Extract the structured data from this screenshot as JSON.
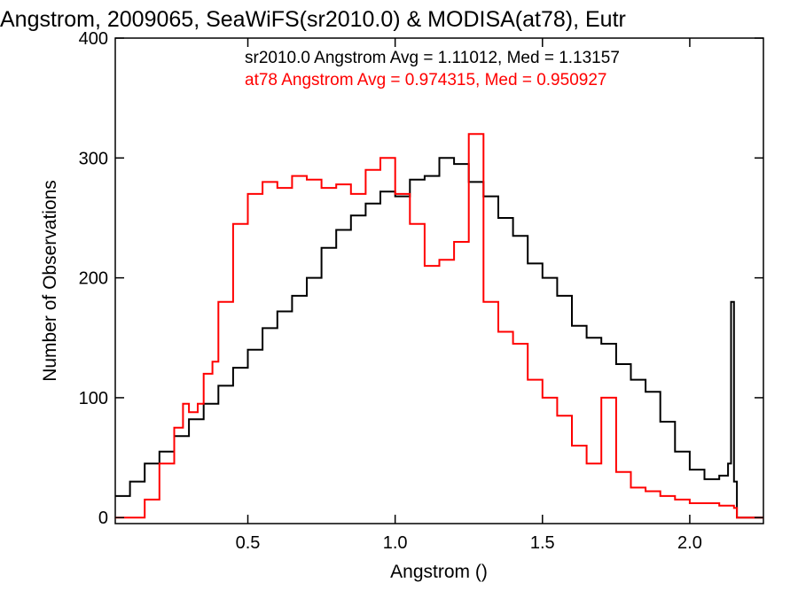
{
  "chart_data": {
    "type": "line",
    "title": "Angstrom, 2009065, SeaWiFS(sr2010.0) & MODISA(at78), Eutr",
    "xlabel": "Angstrom ()",
    "ylabel": "Number of Observations",
    "xlim": [
      0.05,
      2.25
    ],
    "ylim": [
      -5,
      400
    ],
    "x_ticks": [
      0.5,
      1.0,
      1.5,
      2.0
    ],
    "x_tick_labels": [
      "0.5",
      "1.0",
      "1.5",
      "2.0"
    ],
    "y_ticks": [
      0,
      100,
      200,
      300,
      400
    ],
    "y_tick_labels": [
      "0",
      "100",
      "200",
      "300",
      "400"
    ],
    "grid": false,
    "annotations": [
      {
        "text": "sr2010.0 Angstrom Avg = 1.11012, Med = 1.13157",
        "color": "#000000"
      },
      {
        "text": "at78 Angstrom Avg = 0.974315, Med = 0.950927",
        "color": "#ff0000"
      }
    ],
    "series": [
      {
        "color": "#000000",
        "x": [
          0.05,
          0.1,
          0.15,
          0.2,
          0.25,
          0.3,
          0.35,
          0.4,
          0.45,
          0.5,
          0.55,
          0.6,
          0.65,
          0.7,
          0.75,
          0.8,
          0.85,
          0.9,
          0.95,
          1.0,
          1.05,
          1.1,
          1.15,
          1.2,
          1.25,
          1.3,
          1.35,
          1.4,
          1.45,
          1.5,
          1.55,
          1.6,
          1.65,
          1.7,
          1.75,
          1.8,
          1.85,
          1.9,
          1.95,
          2.0,
          2.05,
          2.1,
          2.13,
          2.14,
          2.15,
          2.16,
          2.17,
          2.2,
          2.25
        ],
        "values": [
          18,
          30,
          45,
          55,
          68,
          82,
          95,
          110,
          125,
          140,
          158,
          172,
          185,
          200,
          225,
          240,
          252,
          262,
          272,
          268,
          282,
          285,
          300,
          295,
          280,
          268,
          250,
          235,
          212,
          200,
          185,
          160,
          150,
          145,
          128,
          115,
          105,
          80,
          55,
          40,
          32,
          35,
          45,
          180,
          30,
          0,
          0,
          0,
          0
        ]
      },
      {
        "color": "#ff0000",
        "x": [
          0.05,
          0.1,
          0.15,
          0.2,
          0.25,
          0.28,
          0.3,
          0.33,
          0.35,
          0.38,
          0.4,
          0.45,
          0.5,
          0.55,
          0.6,
          0.65,
          0.7,
          0.75,
          0.8,
          0.85,
          0.9,
          0.95,
          1.0,
          1.05,
          1.1,
          1.15,
          1.2,
          1.25,
          1.3,
          1.35,
          1.4,
          1.45,
          1.5,
          1.55,
          1.6,
          1.65,
          1.7,
          1.75,
          1.8,
          1.85,
          1.9,
          1.95,
          2.0,
          2.05,
          2.1,
          2.15,
          2.16,
          2.17,
          2.2,
          2.25
        ],
        "values": [
          0,
          0,
          15,
          45,
          75,
          95,
          88,
          95,
          120,
          130,
          180,
          245,
          270,
          280,
          275,
          285,
          282,
          275,
          278,
          270,
          290,
          300,
          270,
          245,
          210,
          215,
          230,
          320,
          180,
          155,
          145,
          115,
          100,
          85,
          60,
          45,
          100,
          38,
          25,
          22,
          18,
          15,
          12,
          12,
          10,
          8,
          0,
          0,
          0,
          0
        ]
      }
    ]
  }
}
